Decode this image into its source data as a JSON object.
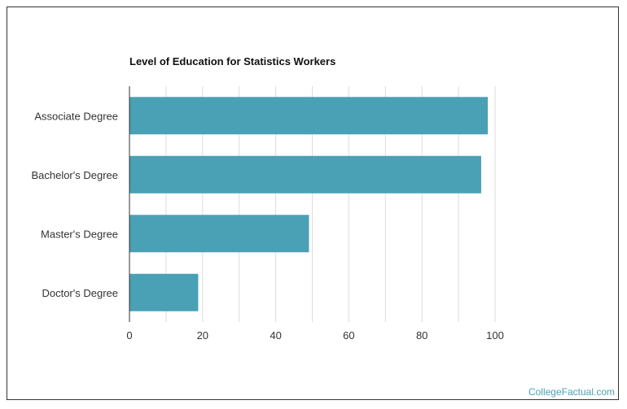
{
  "chart_data": {
    "type": "bar",
    "orientation": "horizontal",
    "title": "Level of Education for Statistics Workers",
    "categories": [
      "Associate Degree",
      "Bachelor's Degree",
      "Master's Degree",
      "Doctor's Degree"
    ],
    "values": [
      98.0,
      96.2,
      49.1,
      18.8
    ],
    "xlabel": "",
    "ylabel": "",
    "xlim": [
      0,
      100
    ],
    "xticks": [
      "0",
      "20",
      "40",
      "60",
      "80",
      "100"
    ],
    "grid": true,
    "bar_color": "#4aa0b5"
  },
  "watermark": {
    "text": "CollegeFactual.com",
    "color": "#4aa0b5"
  }
}
